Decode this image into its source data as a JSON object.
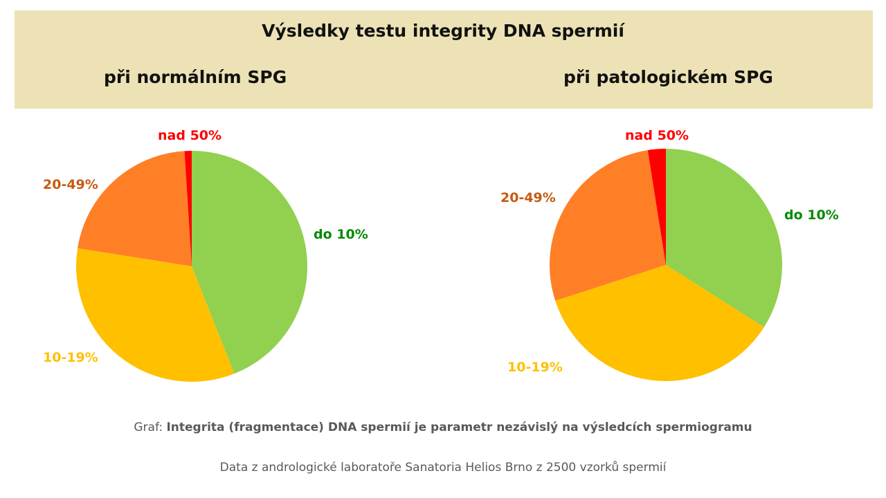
{
  "header": {
    "title": "Výsledky testu integrity DNA spermií"
  },
  "chart_data": [
    {
      "type": "pie",
      "title": "při normálním SPG",
      "categories": [
        "do 10%",
        "10-19%",
        "20-49%",
        "nad 50%"
      ],
      "values": [
        44,
        33.5,
        21.5,
        1
      ],
      "colors": [
        "#92d050",
        "#ffc000",
        "#ff7f27",
        "#ff0000"
      ],
      "label_colors": [
        "#008a00",
        "#ffc000",
        "#c55a11",
        "#ff0000"
      ]
    },
    {
      "type": "pie",
      "title": "při patologickém SPG",
      "categories": [
        "do 10%",
        "10-19%",
        "20-49%",
        "nad 50%"
      ],
      "values": [
        34,
        36,
        27.5,
        2.5
      ],
      "colors": [
        "#92d050",
        "#ffc000",
        "#ff7f27",
        "#ff0000"
      ],
      "label_colors": [
        "#008a00",
        "#ffc000",
        "#c55a11",
        "#ff0000"
      ]
    }
  ],
  "footer": {
    "caption_prefix": "Graf: ",
    "caption_bold": "Integrita (fragmentace) DNA spermií je parametr nezávislý na výsledcích spermiogramu",
    "source": "Data z andrologické laboratoře Sanatoria Helios Brno z 2500 vzorků spermií"
  }
}
